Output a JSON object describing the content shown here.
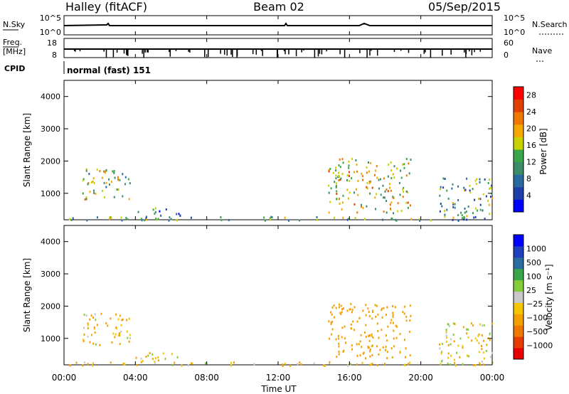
{
  "header": {
    "station": "Halley (fitACF)",
    "beam": "Beam 02",
    "date": "05/Sep/2015"
  },
  "strips": {
    "nsky_label": "N.Sky",
    "nsky_ticks": [
      "10^5",
      "10^0"
    ],
    "nsearch_label": "N.Search",
    "nsearch_ticks": [
      "10^5",
      "10^0"
    ],
    "freq_label_top": "Freq.",
    "freq_label_bottom": "[MHz]",
    "freq_ticks": [
      "18",
      "8"
    ],
    "nave_label": "Nave",
    "nave_ticks": [
      "60",
      "0"
    ],
    "cpid_label": "CPID",
    "cpid_value": "normal (fast) 151"
  },
  "colors": {
    "power": [
      "#0000ff",
      "#1f3fa8",
      "#2a68a0",
      "#3c8c6a",
      "#3aa64a",
      "#c8d200",
      "#f4a800",
      "#f07800",
      "#e04000",
      "#ff0000"
    ],
    "velocity": [
      "#e60000",
      "#e63c00",
      "#f07800",
      "#f4a000",
      "#f4c600",
      "#c8c8c8",
      "#84cc38",
      "#3aa64a",
      "#2a6ba0",
      "#1f3fbf",
      "#0000ff"
    ]
  },
  "chart_data": [
    {
      "type": "heatmap",
      "panel": "power",
      "ylabel": "Slant Range [km]",
      "ylim": [
        180,
        4500
      ],
      "yticks": [
        "1000",
        "2000",
        "3000",
        "4000"
      ],
      "xlim": [
        0,
        24
      ],
      "colorbar": {
        "label": "Power [dB]",
        "range": [
          0,
          30
        ],
        "ticks": [
          "4",
          "8",
          "12",
          "16",
          "20",
          "24",
          "28"
        ]
      },
      "echo_regions": [
        {
          "t_start": 1.0,
          "t_end": 3.7,
          "r_min": 780,
          "r_max": 1800,
          "level": 0.5
        },
        {
          "t_start": 4.0,
          "t_end": 6.5,
          "r_min": 200,
          "r_max": 600,
          "level": 0.3
        },
        {
          "t_start": 14.8,
          "t_end": 19.4,
          "r_min": 400,
          "r_max": 2100,
          "level": 0.6
        },
        {
          "t_start": 21.0,
          "t_end": 24.0,
          "r_min": 200,
          "r_max": 1500,
          "level": 0.35
        },
        {
          "t_start": 0.0,
          "t_end": 24.0,
          "r_min": 180,
          "r_max": 300,
          "level": 0.4
        }
      ]
    },
    {
      "type": "heatmap",
      "panel": "velocity",
      "ylabel": "Slant Range [km]",
      "xlabel": "Time UT",
      "ylim": [
        180,
        4500
      ],
      "yticks": [
        "1000",
        "2000",
        "3000",
        "4000"
      ],
      "xlim": [
        0,
        24
      ],
      "xticks": [
        "00:00",
        "04:00",
        "08:00",
        "12:00",
        "16:00",
        "20:00",
        "00:00"
      ],
      "colorbar": {
        "label": "Velocity [m s⁻¹]",
        "ticks": [
          "1000",
          "500",
          "100",
          "25",
          "−25",
          "−100",
          "−500",
          "−1000"
        ]
      },
      "echo_regions": [
        {
          "t_start": 1.0,
          "t_end": 3.7,
          "r_min": 780,
          "r_max": 1800,
          "velocity": -100
        },
        {
          "t_start": 4.0,
          "t_end": 6.5,
          "r_min": 200,
          "r_max": 600,
          "velocity": -50
        },
        {
          "t_start": 14.8,
          "t_end": 19.4,
          "r_min": 400,
          "r_max": 2100,
          "velocity": -300
        },
        {
          "t_start": 21.0,
          "t_end": 24.0,
          "r_min": 200,
          "r_max": 1500,
          "velocity": -50
        },
        {
          "t_start": 0.0,
          "t_end": 24.0,
          "r_min": 180,
          "r_max": 300,
          "velocity": -100
        }
      ]
    }
  ]
}
